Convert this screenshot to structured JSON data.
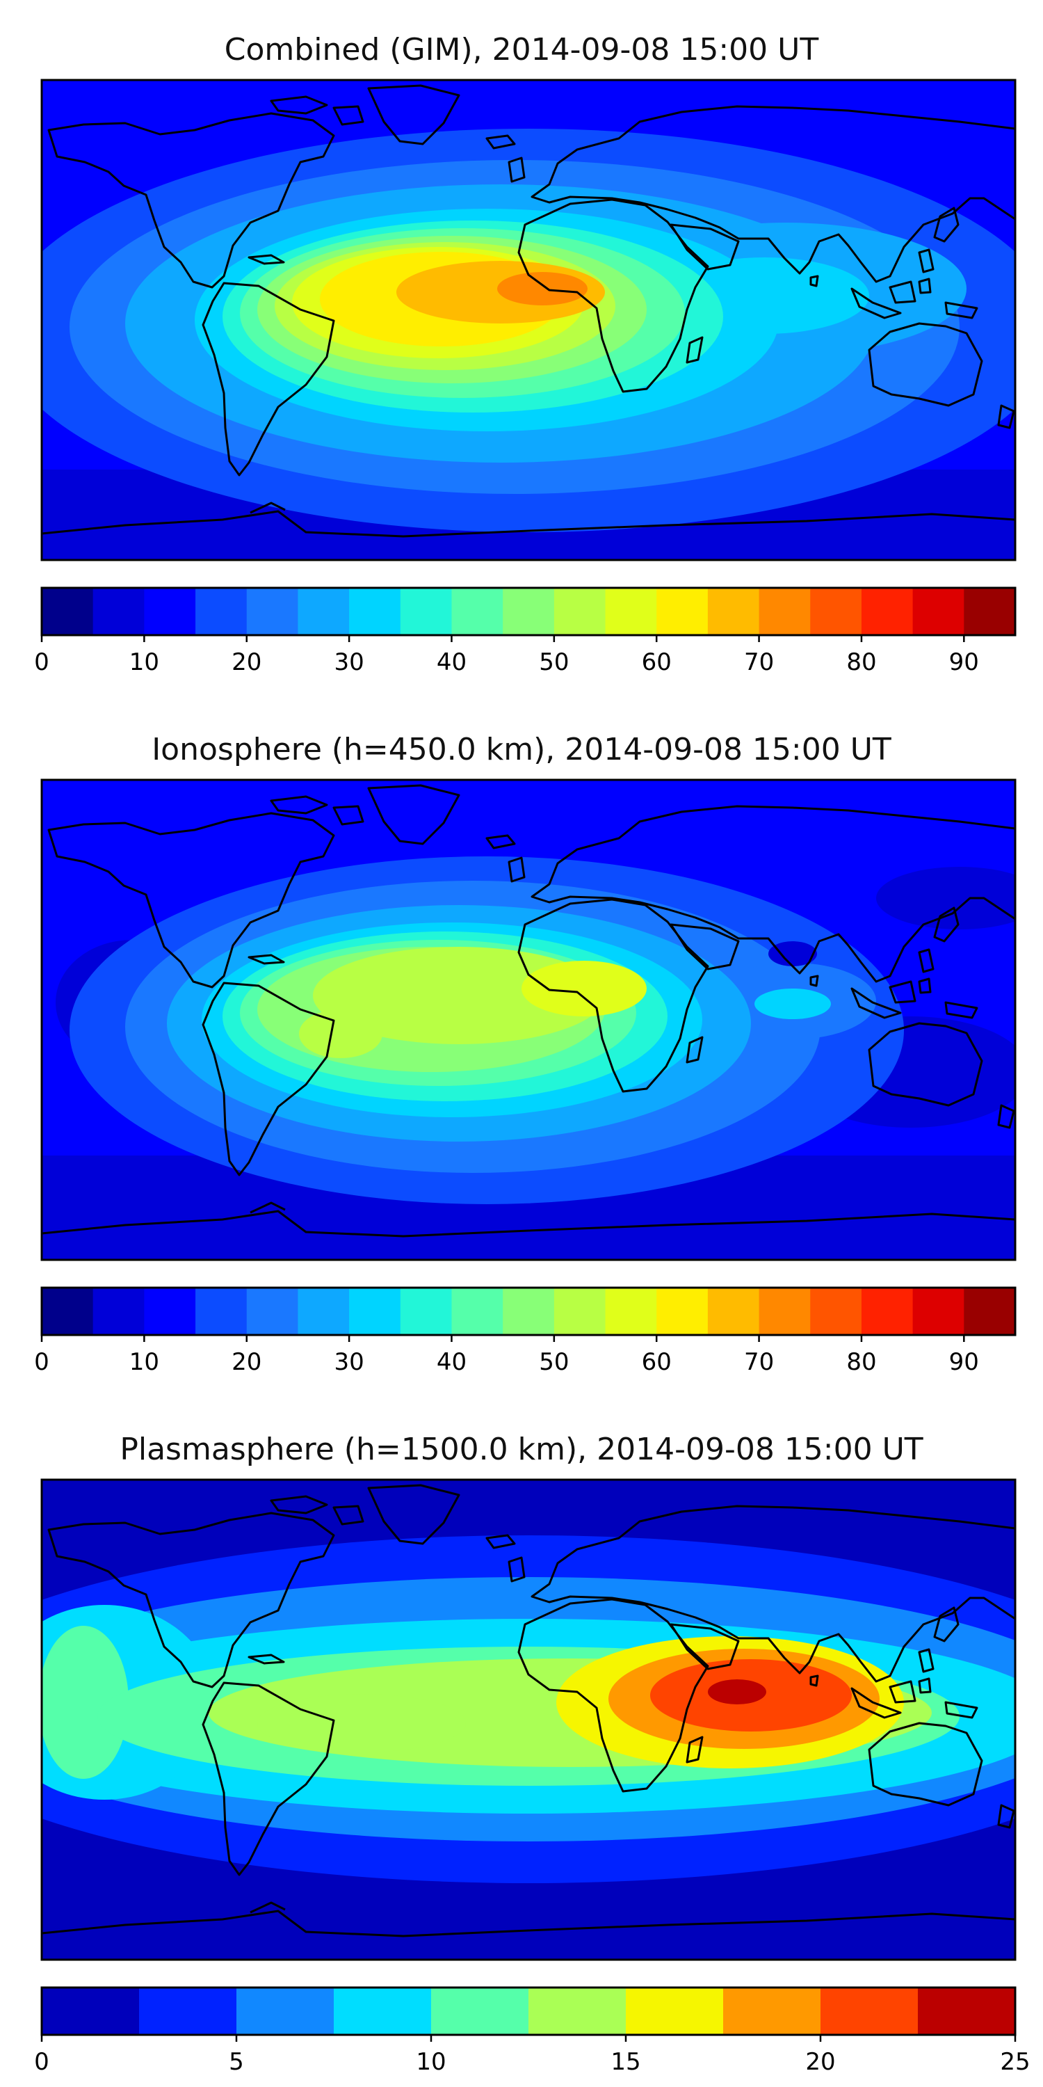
{
  "colors": {
    "cb18": [
      "#00008b",
      "#0000d8",
      "#0000ff",
      "#0c4cff",
      "#1a78ff",
      "#0ea8ff",
      "#00d4ff",
      "#22f6d8",
      "#55ffaa",
      "#88ff77",
      "#b8ff44",
      "#e0ff1a",
      "#ffee00",
      "#ffbb00",
      "#ff8800",
      "#ff5500",
      "#ff2200",
      "#dd0000",
      "#990000"
    ],
    "cb10": [
      "#0000bb",
      "#0022ff",
      "#1188ff",
      "#00ddff",
      "#55ffaa",
      "#aaff55",
      "#f6f600",
      "#ff9900",
      "#ff4400",
      "#bb0000"
    ]
  },
  "maps": [
    {
      "title": "Combined (GIM), 2014-09-08 15:00 UT",
      "colorbar": {
        "min": 0,
        "max": 95,
        "step": 5,
        "ticks": [
          "0",
          "10",
          "20",
          "30",
          "40",
          "50",
          "60",
          "70",
          "80",
          "90"
        ],
        "tick_values": [
          0,
          10,
          20,
          30,
          40,
          50,
          60,
          70,
          80,
          90
        ]
      }
    },
    {
      "title": "Ionosphere  (h=450.0 km), 2014-09-08 15:00 UT",
      "colorbar": {
        "min": 0,
        "max": 95,
        "step": 5,
        "ticks": [
          "0",
          "10",
          "20",
          "30",
          "40",
          "50",
          "60",
          "70",
          "80",
          "90"
        ],
        "tick_values": [
          0,
          10,
          20,
          30,
          40,
          50,
          60,
          70,
          80,
          90
        ]
      }
    },
    {
      "title": "Plasmasphere (h=1500.0 km), 2014-09-08 15:00 UT",
      "colorbar": {
        "min": 0,
        "max": 25,
        "step": 2.5,
        "ticks": [
          "0",
          "5",
          "10",
          "15",
          "20",
          "25"
        ],
        "tick_values": [
          0,
          5,
          10,
          15,
          20,
          25
        ]
      }
    }
  ]
}
